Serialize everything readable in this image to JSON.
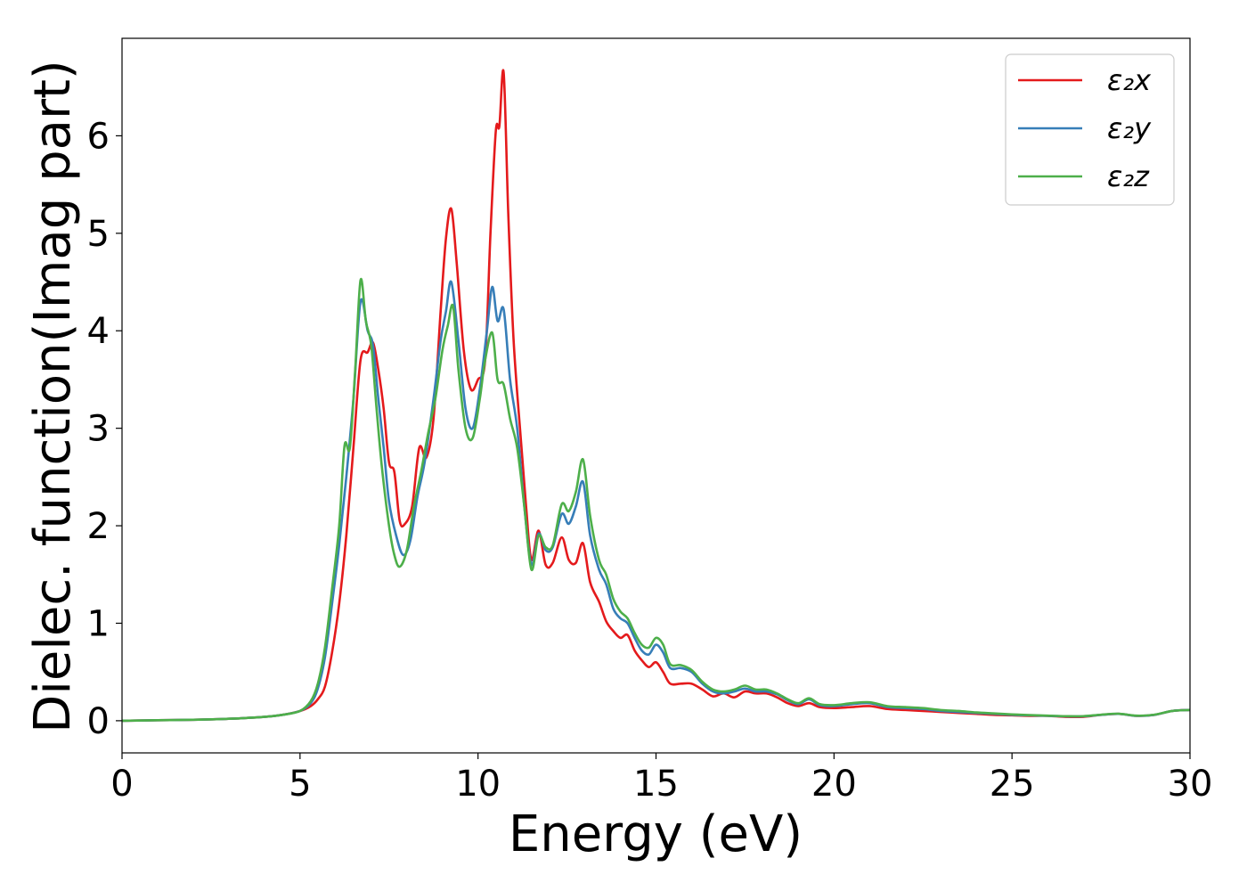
{
  "chart_data": {
    "type": "line",
    "title": "",
    "xlabel": "Energy (eV)",
    "ylabel": "Dielec. function(Imag part)",
    "xlim": [
      0,
      30
    ],
    "ylim": [
      -0.33,
      7.0
    ],
    "xticks": [
      0,
      5,
      10,
      15,
      20,
      25,
      30
    ],
    "yticks": [
      0,
      1,
      2,
      3,
      4,
      5,
      6
    ],
    "grid": false,
    "legend_position": "top-right",
    "series": [
      {
        "name": "ε₂x",
        "color": "#e41a1c",
        "points": [
          [
            0,
            0
          ],
          [
            1,
            0.005
          ],
          [
            2,
            0.01
          ],
          [
            3,
            0.02
          ],
          [
            4,
            0.04
          ],
          [
            4.5,
            0.06
          ],
          [
            5,
            0.1
          ],
          [
            5.3,
            0.15
          ],
          [
            5.5,
            0.22
          ],
          [
            5.7,
            0.35
          ],
          [
            5.9,
            0.7
          ],
          [
            6.1,
            1.2
          ],
          [
            6.3,
            1.9
          ],
          [
            6.5,
            2.8
          ],
          [
            6.7,
            3.7
          ],
          [
            6.9,
            3.78
          ],
          [
            7.05,
            3.88
          ],
          [
            7.2,
            3.6
          ],
          [
            7.35,
            3.2
          ],
          [
            7.5,
            2.65
          ],
          [
            7.65,
            2.55
          ],
          [
            7.8,
            2.05
          ],
          [
            7.95,
            2.02
          ],
          [
            8.15,
            2.2
          ],
          [
            8.35,
            2.8
          ],
          [
            8.55,
            2.7
          ],
          [
            8.75,
            3.1
          ],
          [
            8.95,
            4.2
          ],
          [
            9.1,
            4.95
          ],
          [
            9.25,
            5.25
          ],
          [
            9.4,
            4.7
          ],
          [
            9.6,
            3.8
          ],
          [
            9.8,
            3.4
          ],
          [
            10.0,
            3.5
          ],
          [
            10.2,
            3.7
          ],
          [
            10.35,
            5.0
          ],
          [
            10.5,
            6.05
          ],
          [
            10.6,
            6.1
          ],
          [
            10.72,
            6.65
          ],
          [
            10.85,
            5.2
          ],
          [
            11.0,
            3.9
          ],
          [
            11.2,
            2.9
          ],
          [
            11.35,
            2.2
          ],
          [
            11.5,
            1.65
          ],
          [
            11.7,
            1.95
          ],
          [
            11.9,
            1.6
          ],
          [
            12.1,
            1.62
          ],
          [
            12.35,
            1.88
          ],
          [
            12.55,
            1.65
          ],
          [
            12.75,
            1.62
          ],
          [
            12.95,
            1.82
          ],
          [
            13.15,
            1.42
          ],
          [
            13.4,
            1.22
          ],
          [
            13.6,
            1.02
          ],
          [
            13.8,
            0.92
          ],
          [
            14.0,
            0.85
          ],
          [
            14.2,
            0.88
          ],
          [
            14.4,
            0.72
          ],
          [
            14.6,
            0.62
          ],
          [
            14.8,
            0.55
          ],
          [
            15.0,
            0.6
          ],
          [
            15.2,
            0.5
          ],
          [
            15.4,
            0.38
          ],
          [
            15.7,
            0.38
          ],
          [
            16.0,
            0.38
          ],
          [
            16.3,
            0.32
          ],
          [
            16.6,
            0.25
          ],
          [
            16.9,
            0.28
          ],
          [
            17.2,
            0.24
          ],
          [
            17.5,
            0.3
          ],
          [
            17.8,
            0.28
          ],
          [
            18.1,
            0.28
          ],
          [
            18.4,
            0.24
          ],
          [
            18.7,
            0.18
          ],
          [
            19.0,
            0.15
          ],
          [
            19.3,
            0.18
          ],
          [
            19.6,
            0.14
          ],
          [
            20.0,
            0.13
          ],
          [
            20.5,
            0.14
          ],
          [
            21.0,
            0.15
          ],
          [
            21.5,
            0.12
          ],
          [
            22.0,
            0.11
          ],
          [
            22.5,
            0.1
          ],
          [
            23.0,
            0.09
          ],
          [
            23.5,
            0.08
          ],
          [
            24.0,
            0.07
          ],
          [
            24.5,
            0.06
          ],
          [
            25.0,
            0.055
          ],
          [
            25.5,
            0.05
          ],
          [
            26.0,
            0.05
          ],
          [
            26.5,
            0.04
          ],
          [
            27.0,
            0.04
          ],
          [
            27.5,
            0.06
          ],
          [
            28.0,
            0.07
          ],
          [
            28.5,
            0.05
          ],
          [
            29.0,
            0.06
          ],
          [
            29.5,
            0.1
          ],
          [
            30.0,
            0.11
          ]
        ]
      },
      {
        "name": "ε₂y",
        "color": "#377eb8",
        "points": [
          [
            0,
            0
          ],
          [
            1,
            0.005
          ],
          [
            2,
            0.01
          ],
          [
            3,
            0.02
          ],
          [
            4,
            0.04
          ],
          [
            4.5,
            0.06
          ],
          [
            5,
            0.1
          ],
          [
            5.3,
            0.18
          ],
          [
            5.5,
            0.33
          ],
          [
            5.7,
            0.65
          ],
          [
            5.9,
            1.2
          ],
          [
            6.1,
            1.8
          ],
          [
            6.3,
            2.5
          ],
          [
            6.5,
            3.3
          ],
          [
            6.7,
            4.3
          ],
          [
            6.9,
            4.0
          ],
          [
            7.05,
            3.85
          ],
          [
            7.2,
            3.3
          ],
          [
            7.35,
            2.8
          ],
          [
            7.5,
            2.25
          ],
          [
            7.7,
            1.9
          ],
          [
            7.9,
            1.7
          ],
          [
            8.1,
            1.85
          ],
          [
            8.3,
            2.3
          ],
          [
            8.5,
            2.65
          ],
          [
            8.75,
            3.3
          ],
          [
            8.95,
            3.9
          ],
          [
            9.1,
            4.2
          ],
          [
            9.25,
            4.5
          ],
          [
            9.45,
            3.9
          ],
          [
            9.65,
            3.2
          ],
          [
            9.85,
            3.0
          ],
          [
            10.05,
            3.4
          ],
          [
            10.25,
            4.0
          ],
          [
            10.4,
            4.45
          ],
          [
            10.55,
            4.1
          ],
          [
            10.72,
            4.22
          ],
          [
            10.9,
            3.5
          ],
          [
            11.1,
            3.0
          ],
          [
            11.3,
            2.2
          ],
          [
            11.5,
            1.6
          ],
          [
            11.7,
            1.92
          ],
          [
            11.9,
            1.75
          ],
          [
            12.1,
            1.78
          ],
          [
            12.35,
            2.12
          ],
          [
            12.55,
            2.02
          ],
          [
            12.75,
            2.2
          ],
          [
            12.95,
            2.45
          ],
          [
            13.15,
            1.9
          ],
          [
            13.4,
            1.55
          ],
          [
            13.6,
            1.4
          ],
          [
            13.8,
            1.15
          ],
          [
            14.0,
            1.05
          ],
          [
            14.2,
            1.0
          ],
          [
            14.4,
            0.85
          ],
          [
            14.6,
            0.72
          ],
          [
            14.8,
            0.68
          ],
          [
            15.0,
            0.78
          ],
          [
            15.2,
            0.7
          ],
          [
            15.4,
            0.54
          ],
          [
            15.7,
            0.54
          ],
          [
            16.0,
            0.5
          ],
          [
            16.3,
            0.38
          ],
          [
            16.6,
            0.3
          ],
          [
            16.9,
            0.28
          ],
          [
            17.2,
            0.3
          ],
          [
            17.5,
            0.33
          ],
          [
            17.8,
            0.3
          ],
          [
            18.1,
            0.3
          ],
          [
            18.4,
            0.27
          ],
          [
            18.7,
            0.21
          ],
          [
            19.0,
            0.17
          ],
          [
            19.3,
            0.22
          ],
          [
            19.6,
            0.16
          ],
          [
            20.0,
            0.15
          ],
          [
            20.5,
            0.17
          ],
          [
            21.0,
            0.18
          ],
          [
            21.5,
            0.14
          ],
          [
            22.0,
            0.13
          ],
          [
            22.5,
            0.12
          ],
          [
            23.0,
            0.1
          ],
          [
            23.5,
            0.09
          ],
          [
            24.0,
            0.08
          ],
          [
            24.5,
            0.07
          ],
          [
            25.0,
            0.06
          ],
          [
            25.5,
            0.055
          ],
          [
            26.0,
            0.05
          ],
          [
            26.5,
            0.045
          ],
          [
            27.0,
            0.045
          ],
          [
            27.5,
            0.06
          ],
          [
            28.0,
            0.07
          ],
          [
            28.5,
            0.05
          ],
          [
            29.0,
            0.06
          ],
          [
            29.5,
            0.1
          ],
          [
            30.0,
            0.11
          ]
        ]
      },
      {
        "name": "ε₂z",
        "color": "#4daf4a",
        "points": [
          [
            0,
            0
          ],
          [
            1,
            0.005
          ],
          [
            2,
            0.01
          ],
          [
            3,
            0.02
          ],
          [
            4,
            0.04
          ],
          [
            4.5,
            0.06
          ],
          [
            5,
            0.1
          ],
          [
            5.3,
            0.2
          ],
          [
            5.5,
            0.38
          ],
          [
            5.7,
            0.75
          ],
          [
            5.9,
            1.35
          ],
          [
            6.1,
            2.0
          ],
          [
            6.25,
            2.82
          ],
          [
            6.4,
            2.8
          ],
          [
            6.55,
            3.6
          ],
          [
            6.7,
            4.52
          ],
          [
            6.85,
            4.1
          ],
          [
            7.0,
            3.85
          ],
          [
            7.15,
            3.2
          ],
          [
            7.3,
            2.6
          ],
          [
            7.5,
            2.0
          ],
          [
            7.65,
            1.7
          ],
          [
            7.8,
            1.58
          ],
          [
            8.0,
            1.75
          ],
          [
            8.2,
            2.2
          ],
          [
            8.4,
            2.55
          ],
          [
            8.6,
            2.95
          ],
          [
            8.8,
            3.3
          ],
          [
            9.0,
            3.8
          ],
          [
            9.15,
            4.05
          ],
          [
            9.3,
            4.25
          ],
          [
            9.45,
            3.6
          ],
          [
            9.65,
            3.0
          ],
          [
            9.85,
            2.9
          ],
          [
            10.05,
            3.3
          ],
          [
            10.2,
            3.7
          ],
          [
            10.4,
            3.98
          ],
          [
            10.55,
            3.5
          ],
          [
            10.72,
            3.45
          ],
          [
            10.9,
            3.1
          ],
          [
            11.1,
            2.8
          ],
          [
            11.3,
            2.2
          ],
          [
            11.5,
            1.55
          ],
          [
            11.7,
            1.9
          ],
          [
            11.9,
            1.78
          ],
          [
            12.1,
            1.8
          ],
          [
            12.35,
            2.22
          ],
          [
            12.55,
            2.15
          ],
          [
            12.75,
            2.35
          ],
          [
            12.95,
            2.68
          ],
          [
            13.15,
            2.1
          ],
          [
            13.4,
            1.65
          ],
          [
            13.6,
            1.5
          ],
          [
            13.8,
            1.25
          ],
          [
            14.0,
            1.12
          ],
          [
            14.2,
            1.05
          ],
          [
            14.4,
            0.9
          ],
          [
            14.6,
            0.78
          ],
          [
            14.8,
            0.75
          ],
          [
            15.0,
            0.85
          ],
          [
            15.2,
            0.78
          ],
          [
            15.4,
            0.58
          ],
          [
            15.7,
            0.57
          ],
          [
            16.0,
            0.52
          ],
          [
            16.3,
            0.4
          ],
          [
            16.6,
            0.32
          ],
          [
            16.9,
            0.3
          ],
          [
            17.2,
            0.32
          ],
          [
            17.5,
            0.36
          ],
          [
            17.8,
            0.32
          ],
          [
            18.1,
            0.32
          ],
          [
            18.4,
            0.28
          ],
          [
            18.7,
            0.22
          ],
          [
            19.0,
            0.18
          ],
          [
            19.3,
            0.23
          ],
          [
            19.6,
            0.17
          ],
          [
            20.0,
            0.16
          ],
          [
            20.5,
            0.18
          ],
          [
            21.0,
            0.19
          ],
          [
            21.5,
            0.15
          ],
          [
            22.0,
            0.14
          ],
          [
            22.5,
            0.13
          ],
          [
            23.0,
            0.11
          ],
          [
            23.5,
            0.1
          ],
          [
            24.0,
            0.085
          ],
          [
            24.5,
            0.075
          ],
          [
            25.0,
            0.065
          ],
          [
            25.5,
            0.058
          ],
          [
            26.0,
            0.052
          ],
          [
            26.5,
            0.047
          ],
          [
            27.0,
            0.047
          ],
          [
            27.5,
            0.062
          ],
          [
            28.0,
            0.072
          ],
          [
            28.5,
            0.052
          ],
          [
            29.0,
            0.062
          ],
          [
            29.5,
            0.1
          ],
          [
            30.0,
            0.11
          ]
        ]
      }
    ]
  }
}
